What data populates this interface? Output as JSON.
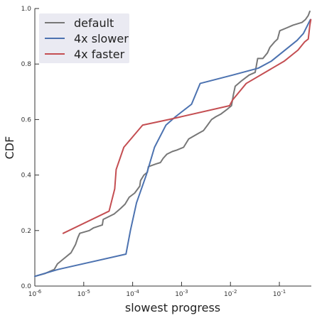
{
  "chart_data": {
    "type": "line",
    "xlabel": "slowest progress",
    "ylabel": "CDF",
    "xscale": "log",
    "xlim": [
      1e-06,
      0.45
    ],
    "ylim": [
      0.0,
      1.0
    ],
    "grid": false,
    "legend_position": "top-left",
    "x_ticks": [
      {
        "value": 1e-06,
        "base": "10",
        "exp": "-6"
      },
      {
        "value": 1e-05,
        "base": "10",
        "exp": "-5"
      },
      {
        "value": 0.0001,
        "base": "10",
        "exp": "-4"
      },
      {
        "value": 0.001,
        "base": "10",
        "exp": "-3"
      },
      {
        "value": 0.01,
        "base": "10",
        "exp": "-2"
      },
      {
        "value": 0.1,
        "base": "10",
        "exp": "-1"
      }
    ],
    "y_ticks": [
      {
        "value": 0.0,
        "label": "0.0"
      },
      {
        "value": 0.2,
        "label": "0.2"
      },
      {
        "value": 0.4,
        "label": "0.4"
      },
      {
        "value": 0.6,
        "label": "0.6"
      },
      {
        "value": 0.8,
        "label": "0.8"
      },
      {
        "value": 1.0,
        "label": "1.0"
      }
    ],
    "series": [
      {
        "name": "default",
        "color": "#777777",
        "points": [
          [
            1e-06,
            0.035
          ],
          [
            1.6e-06,
            0.045
          ],
          [
            2.5e-06,
            0.06
          ],
          [
            2.9e-06,
            0.08
          ],
          [
            4e-06,
            0.1
          ],
          [
            5.5e-06,
            0.12
          ],
          [
            6.8e-06,
            0.15
          ],
          [
            7.6e-06,
            0.175
          ],
          [
            8.3e-06,
            0.19
          ],
          [
            1.3e-05,
            0.2
          ],
          [
            1.6e-05,
            0.21
          ],
          [
            2.4e-05,
            0.22
          ],
          [
            2.5e-05,
            0.24
          ],
          [
            4.2e-05,
            0.26
          ],
          [
            5.7e-05,
            0.28
          ],
          [
            7e-05,
            0.295
          ],
          [
            8.5e-05,
            0.32
          ],
          [
            0.00011,
            0.335
          ],
          [
            0.00014,
            0.36
          ],
          [
            0.000145,
            0.38
          ],
          [
            0.00017,
            0.4
          ],
          [
            0.0002,
            0.41
          ],
          [
            0.00021,
            0.43
          ],
          [
            0.0003,
            0.44
          ],
          [
            0.00037,
            0.445
          ],
          [
            0.00042,
            0.46
          ],
          [
            0.0005,
            0.475
          ],
          [
            0.00065,
            0.485
          ],
          [
            0.0008,
            0.49
          ],
          [
            0.0011,
            0.5
          ],
          [
            0.0014,
            0.53
          ],
          [
            0.0022,
            0.55
          ],
          [
            0.0028,
            0.56
          ],
          [
            0.0034,
            0.58
          ],
          [
            0.0041,
            0.6
          ],
          [
            0.005,
            0.61
          ],
          [
            0.0064,
            0.62
          ],
          [
            0.0083,
            0.635
          ],
          [
            0.0105,
            0.65
          ],
          [
            0.0115,
            0.69
          ],
          [
            0.0125,
            0.72
          ],
          [
            0.017,
            0.74
          ],
          [
            0.024,
            0.76
          ],
          [
            0.032,
            0.77
          ],
          [
            0.036,
            0.82
          ],
          [
            0.046,
            0.82
          ],
          [
            0.057,
            0.84
          ],
          [
            0.064,
            0.86
          ],
          [
            0.08,
            0.88
          ],
          [
            0.092,
            0.89
          ],
          [
            0.102,
            0.92
          ],
          [
            0.14,
            0.93
          ],
          [
            0.19,
            0.94
          ],
          [
            0.29,
            0.95
          ],
          [
            0.34,
            0.96
          ],
          [
            0.39,
            0.975
          ],
          [
            0.42,
            0.99
          ]
        ]
      },
      {
        "name": "4x slower",
        "color": "#4c72b0",
        "points": [
          [
            1e-06,
            0.035
          ],
          [
            3e-06,
            0.06
          ],
          [
            7.3e-05,
            0.115
          ],
          [
            9e-05,
            0.2
          ],
          [
            0.00012,
            0.3
          ],
          [
            0.00019,
            0.4
          ],
          [
            0.00028,
            0.5
          ],
          [
            0.00048,
            0.58
          ],
          [
            0.00075,
            0.61
          ],
          [
            0.0016,
            0.655
          ],
          [
            0.0024,
            0.73
          ],
          [
            0.011,
            0.76
          ],
          [
            0.037,
            0.785
          ],
          [
            0.068,
            0.81
          ],
          [
            0.23,
            0.885
          ],
          [
            0.31,
            0.91
          ],
          [
            0.43,
            0.96
          ]
        ]
      },
      {
        "name": "4x faster",
        "color": "#c44e52",
        "points": [
          [
            3.8e-06,
            0.19
          ],
          [
            3.3e-05,
            0.27
          ],
          [
            4.3e-05,
            0.35
          ],
          [
            4.6e-05,
            0.42
          ],
          [
            6.6e-05,
            0.5
          ],
          [
            0.00016,
            0.58
          ],
          [
            0.00055,
            0.6
          ],
          [
            0.0096,
            0.65
          ],
          [
            0.011,
            0.67
          ],
          [
            0.021,
            0.73
          ],
          [
            0.125,
            0.81
          ],
          [
            0.24,
            0.85
          ],
          [
            0.33,
            0.88
          ],
          [
            0.39,
            0.89
          ],
          [
            0.42,
            0.94
          ],
          [
            0.44,
            0.96
          ]
        ]
      }
    ]
  }
}
